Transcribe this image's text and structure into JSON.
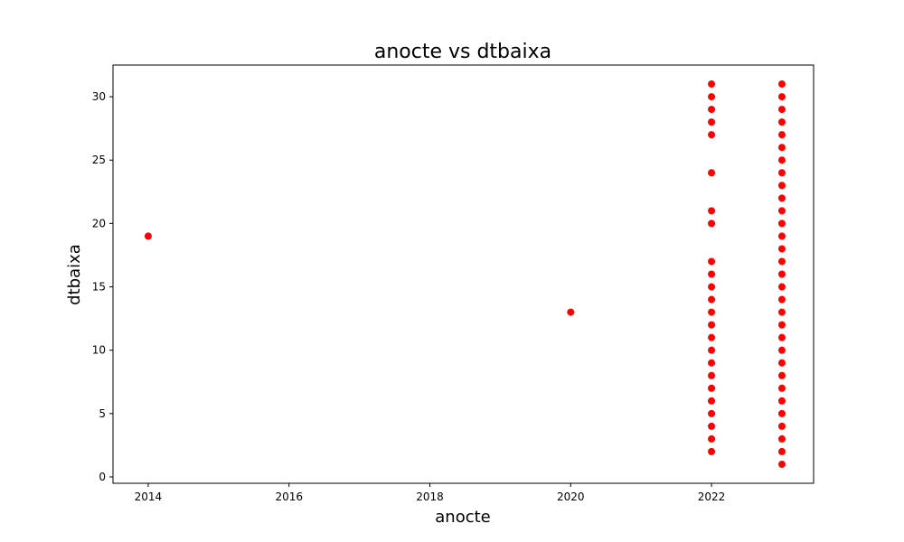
{
  "chart_data": {
    "type": "scatter",
    "title": "anocte vs dtbaixa",
    "xlabel": "anocte",
    "ylabel": "dtbaixa",
    "xlim": [
      2013.5,
      2023.45
    ],
    "ylim": [
      -0.5,
      32.5
    ],
    "xticks": [
      2014,
      2016,
      2018,
      2020,
      2022
    ],
    "yticks": [
      0,
      5,
      10,
      15,
      20,
      25,
      30
    ],
    "grid": false,
    "marker_color": "#ff0000",
    "points": [
      {
        "x": 2014,
        "y": 19
      },
      {
        "x": 2020,
        "y": 13
      },
      {
        "x": 2022,
        "y": 2
      },
      {
        "x": 2022,
        "y": 3
      },
      {
        "x": 2022,
        "y": 4
      },
      {
        "x": 2022,
        "y": 5
      },
      {
        "x": 2022,
        "y": 6
      },
      {
        "x": 2022,
        "y": 7
      },
      {
        "x": 2022,
        "y": 8
      },
      {
        "x": 2022,
        "y": 9
      },
      {
        "x": 2022,
        "y": 10
      },
      {
        "x": 2022,
        "y": 11
      },
      {
        "x": 2022,
        "y": 12
      },
      {
        "x": 2022,
        "y": 13
      },
      {
        "x": 2022,
        "y": 14
      },
      {
        "x": 2022,
        "y": 15
      },
      {
        "x": 2022,
        "y": 16
      },
      {
        "x": 2022,
        "y": 17
      },
      {
        "x": 2022,
        "y": 20
      },
      {
        "x": 2022,
        "y": 21
      },
      {
        "x": 2022,
        "y": 24
      },
      {
        "x": 2022,
        "y": 27
      },
      {
        "x": 2022,
        "y": 28
      },
      {
        "x": 2022,
        "y": 29
      },
      {
        "x": 2022,
        "y": 30
      },
      {
        "x": 2022,
        "y": 31
      },
      {
        "x": 2023,
        "y": 1
      },
      {
        "x": 2023,
        "y": 2
      },
      {
        "x": 2023,
        "y": 3
      },
      {
        "x": 2023,
        "y": 4
      },
      {
        "x": 2023,
        "y": 5
      },
      {
        "x": 2023,
        "y": 6
      },
      {
        "x": 2023,
        "y": 7
      },
      {
        "x": 2023,
        "y": 8
      },
      {
        "x": 2023,
        "y": 9
      },
      {
        "x": 2023,
        "y": 10
      },
      {
        "x": 2023,
        "y": 11
      },
      {
        "x": 2023,
        "y": 12
      },
      {
        "x": 2023,
        "y": 13
      },
      {
        "x": 2023,
        "y": 14
      },
      {
        "x": 2023,
        "y": 15
      },
      {
        "x": 2023,
        "y": 16
      },
      {
        "x": 2023,
        "y": 17
      },
      {
        "x": 2023,
        "y": 18
      },
      {
        "x": 2023,
        "y": 19
      },
      {
        "x": 2023,
        "y": 20
      },
      {
        "x": 2023,
        "y": 21
      },
      {
        "x": 2023,
        "y": 22
      },
      {
        "x": 2023,
        "y": 23
      },
      {
        "x": 2023,
        "y": 24
      },
      {
        "x": 2023,
        "y": 25
      },
      {
        "x": 2023,
        "y": 26
      },
      {
        "x": 2023,
        "y": 27
      },
      {
        "x": 2023,
        "y": 28
      },
      {
        "x": 2023,
        "y": 29
      },
      {
        "x": 2023,
        "y": 30
      },
      {
        "x": 2023,
        "y": 31
      }
    ]
  }
}
